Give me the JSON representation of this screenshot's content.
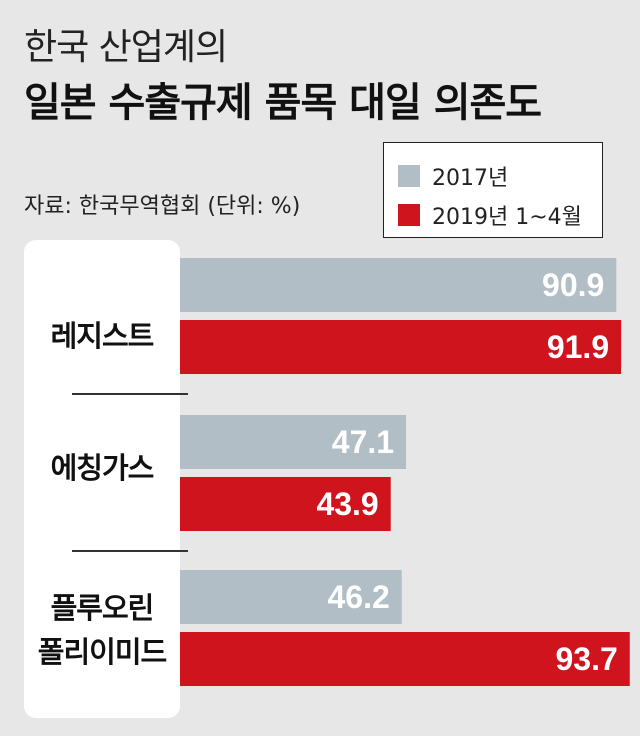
{
  "header": {
    "title_line1": "한국 산업계의",
    "title_line2": "일본 수출규제 품목 대일 의존도",
    "source": "자료: 한국무역협회 (단위: %)"
  },
  "colors": {
    "background": "#e7e7e7",
    "series_2017": "#b2bec5",
    "series_2019": "#d0141e"
  },
  "chart_data": {
    "type": "bar",
    "orientation": "horizontal",
    "title": "일본 수출규제 품목 대일 의존도",
    "unit": "%",
    "categories": [
      "레지스트",
      "에칭가스",
      "플루오린 폴리이미드"
    ],
    "category_lines": [
      [
        "레지스트"
      ],
      [
        "에칭가스"
      ],
      [
        "플루오린",
        "폴리이미드"
      ]
    ],
    "series": [
      {
        "name": "2017년",
        "values": [
          90.9,
          47.1,
          46.2
        ],
        "color": "#b2bec5"
      },
      {
        "name": "2019년 1~4월",
        "values": [
          91.9,
          43.9,
          93.7
        ],
        "color": "#d0141e"
      }
    ],
    "xlim": [
      0,
      100
    ],
    "legend_position": "top-right",
    "grid": false
  }
}
